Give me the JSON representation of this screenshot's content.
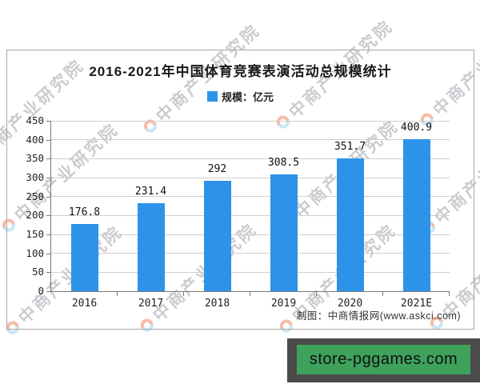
{
  "chart": {
    "title": "2016-2021年中国体育竞赛表演活动总规模统计",
    "legend_label": "规模：亿元",
    "source": "制图：中商情报网(www.askci.com)",
    "accent_color": "#2d93e8"
  },
  "chart_data": {
    "type": "bar",
    "title": "2016-2021年中国体育竞赛表演活动总规模统计",
    "legend": [
      "规模：亿元"
    ],
    "legend_position": "top",
    "categories": [
      "2016",
      "2017",
      "2018",
      "2019",
      "2020",
      "2021E"
    ],
    "values": [
      176.8,
      231.4,
      292,
      308.5,
      351.7,
      400.9
    ],
    "value_labels": [
      "176.8",
      "231.4",
      "292",
      "308.5",
      "351.7",
      "400.9"
    ],
    "xlabel": "",
    "ylabel": "",
    "ylim": [
      0,
      450
    ],
    "ytick_step": 50,
    "y_ticks": [
      0,
      50,
      100,
      150,
      200,
      250,
      300,
      350,
      400,
      450
    ],
    "grid": true,
    "bar_color": "#2d93e8",
    "source": "制图：中商情报网(www.askci.com)"
  },
  "watermark": {
    "text": "中商产业研究院",
    "icon": "two-tone-ring-icon"
  },
  "badge": {
    "text": "store-pggames.com",
    "bg_color": "#3fa25c",
    "border_color": "#4b4b4b"
  }
}
